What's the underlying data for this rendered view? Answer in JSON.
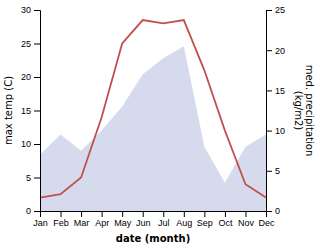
{
  "chart_data": {
    "type": "line",
    "categories": [
      "Jan",
      "Feb",
      "Mar",
      "Apr",
      "May",
      "Jun",
      "Jul",
      "Aug",
      "Sep",
      "Oct",
      "Nov",
      "Dec"
    ],
    "series": [
      {
        "type": "area",
        "axis": "y2",
        "color": "#8899cc",
        "values": [
          7,
          9.5,
          7.5,
          10,
          13,
          17,
          19,
          20.5,
          8,
          3.5,
          8,
          9.5
        ]
      },
      {
        "type": "line",
        "color": "#c0504d",
        "values": [
          2,
          2.5,
          5,
          14,
          25,
          28.5,
          28,
          28.5,
          21,
          12,
          4,
          2
        ]
      }
    ],
    "xlabel": "date (month)",
    "ylabel": "max temp (C)",
    "y2label": "med. precipitation\n(kg/m2)",
    "ylim": [
      0,
      30
    ],
    "yticks": [
      0,
      5,
      10,
      15,
      20,
      25,
      30
    ],
    "y2lim": [
      0,
      25
    ],
    "y2ticks": [
      0,
      5,
      10,
      15,
      20,
      25
    ]
  }
}
